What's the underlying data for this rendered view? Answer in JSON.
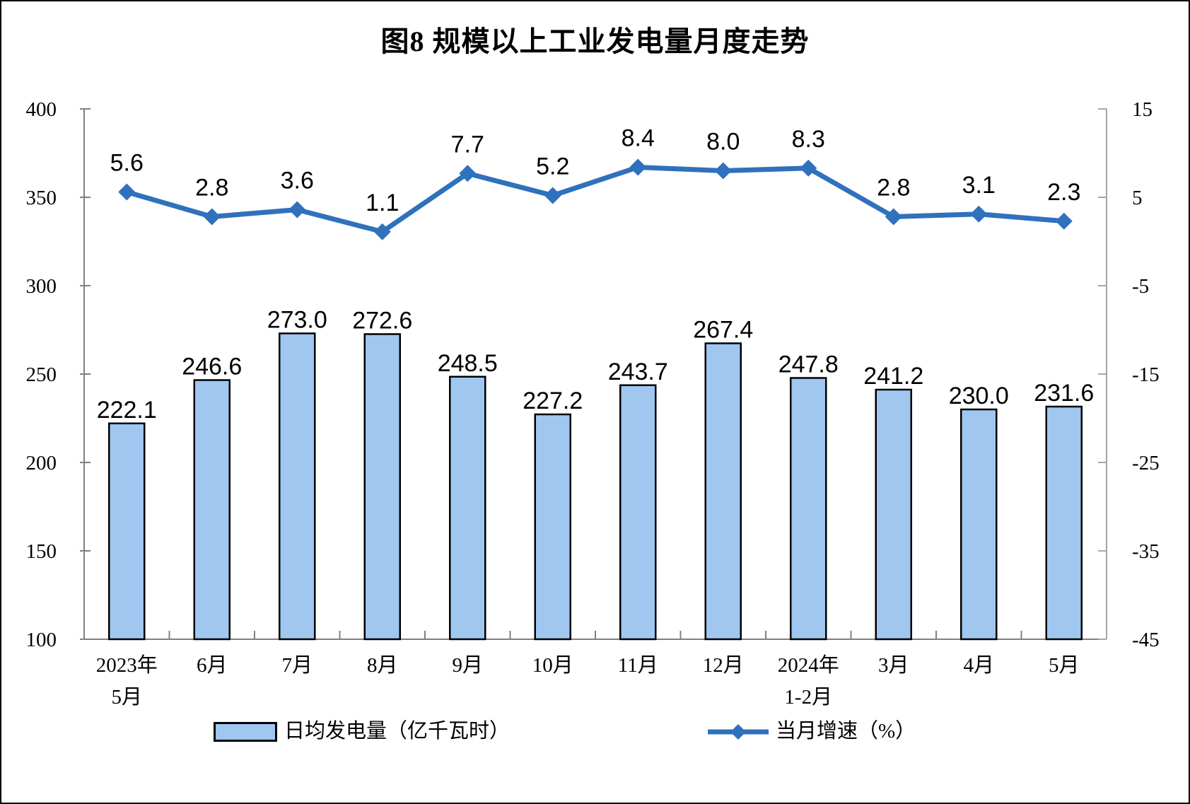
{
  "title": "图8  规模以上工业发电量月度走势",
  "legend": {
    "bar_label": "日均发电量（亿千瓦时）",
    "line_label": "当月增速（%）"
  },
  "colors": {
    "bar_fill": "#9FC7F0",
    "bar_border": "#000000",
    "line": "#2F71BC",
    "axis_left": "#808080",
    "axis_right": "#A6A6A6",
    "axis_bottom": "#808080",
    "text": "#000000"
  },
  "chart_data": {
    "type": "combo-bar-line",
    "categories": [
      [
        "2023年",
        "5月"
      ],
      [
        "6月"
      ],
      [
        "7月"
      ],
      [
        "8月"
      ],
      [
        "9月"
      ],
      [
        "10月"
      ],
      [
        "11月"
      ],
      [
        "12月"
      ],
      [
        "2024年",
        "1-2月"
      ],
      [
        "3月"
      ],
      [
        "4月"
      ],
      [
        "5月"
      ]
    ],
    "series": [
      {
        "name": "日均发电量（亿千瓦时）",
        "type": "bar",
        "axis": "left",
        "values": [
          222.1,
          246.6,
          273.0,
          272.6,
          248.5,
          227.2,
          243.7,
          267.4,
          247.8,
          241.2,
          230.0,
          231.6
        ],
        "value_labels": [
          "222.1",
          "246.6",
          "273.0",
          "272.6",
          "248.5",
          "227.2",
          "243.7",
          "267.4",
          "247.8",
          "241.2",
          "230.0",
          "231.6"
        ]
      },
      {
        "name": "当月增速（%）",
        "type": "line",
        "axis": "right",
        "values": [
          5.6,
          2.8,
          3.6,
          1.1,
          7.7,
          5.2,
          8.4,
          8.0,
          8.3,
          2.8,
          3.1,
          2.3
        ],
        "value_labels": [
          "5.6",
          "2.8",
          "3.6",
          "1.1",
          "7.7",
          "5.2",
          "8.4",
          "8.0",
          "8.3",
          "2.8",
          "3.1",
          "2.3"
        ]
      }
    ],
    "left_ylim": [
      100,
      400
    ],
    "right_ylim": [
      -45,
      15
    ],
    "left_ticks": [
      400,
      350,
      300,
      250,
      200,
      150,
      100
    ],
    "right_ticks": [
      15,
      5,
      -5,
      -15,
      -25,
      -35,
      -45
    ],
    "grid": false,
    "legend_position": "bottom"
  }
}
